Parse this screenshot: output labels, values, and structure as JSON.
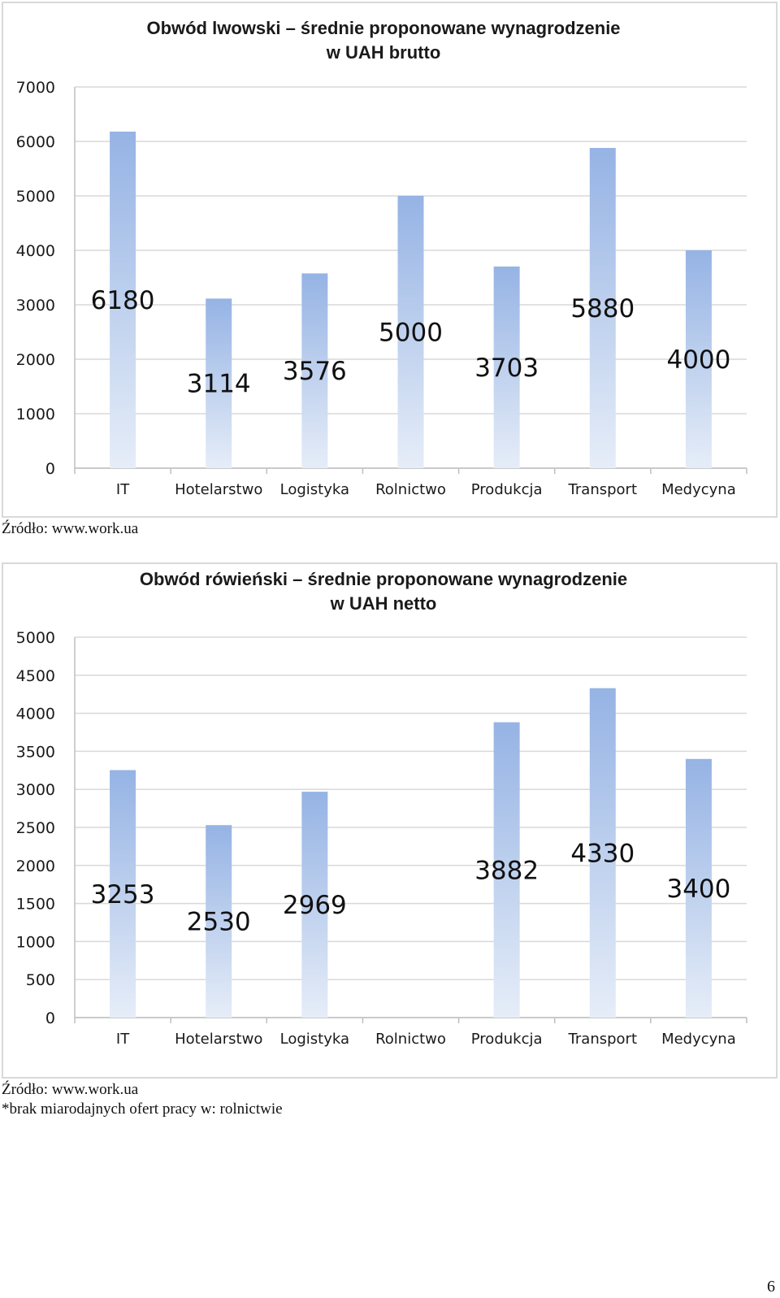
{
  "chart_data": [
    {
      "type": "bar",
      "title": [
        "Obwód lwowski – średnie proponowane wynagrodzenie",
        "w UAH brutto"
      ],
      "categories": [
        "IT",
        "Hotelarstwo",
        "Logistyka",
        "Rolnictwo",
        "Produkcja",
        "Transport",
        "Medycyna"
      ],
      "values": [
        6180,
        3114,
        3576,
        5000,
        3703,
        5880,
        4000
      ],
      "data_labels": [
        "6180",
        "3114",
        "3576",
        "5000",
        "3703",
        "5880",
        "4000"
      ],
      "ylim": [
        0,
        7000
      ],
      "yticks": [
        0,
        1000,
        2000,
        3000,
        4000,
        5000,
        6000,
        7000
      ],
      "grid": true,
      "bar_color_top": "#95b3e4",
      "bar_color_bottom": "#e6edf8"
    },
    {
      "type": "bar",
      "title": [
        "Obwód rówieński – średnie proponowane wynagrodzenie",
        "w UAH netto"
      ],
      "categories": [
        "IT",
        "Hotelarstwo",
        "Logistyka",
        "Rolnictwo",
        "Produkcja",
        "Transport",
        "Medycyna"
      ],
      "values": [
        3253,
        2530,
        2969,
        null,
        3882,
        4330,
        3400
      ],
      "data_labels": [
        "3253",
        "2530",
        "2969",
        "",
        "3882",
        "4330",
        "3400"
      ],
      "ylim": [
        0,
        5000
      ],
      "yticks": [
        0,
        500,
        1000,
        1500,
        2000,
        2500,
        3000,
        3500,
        4000,
        4500,
        5000
      ],
      "grid": true,
      "bar_color_top": "#95b3e4",
      "bar_color_bottom": "#e6edf8"
    }
  ],
  "notes": {
    "source_1": "Źródło: www.work.ua",
    "source_2": "Źródło: www.work.ua",
    "footnote_2": "*brak miarodajnych ofert pracy w: rolnictwie"
  },
  "page_number": "6"
}
